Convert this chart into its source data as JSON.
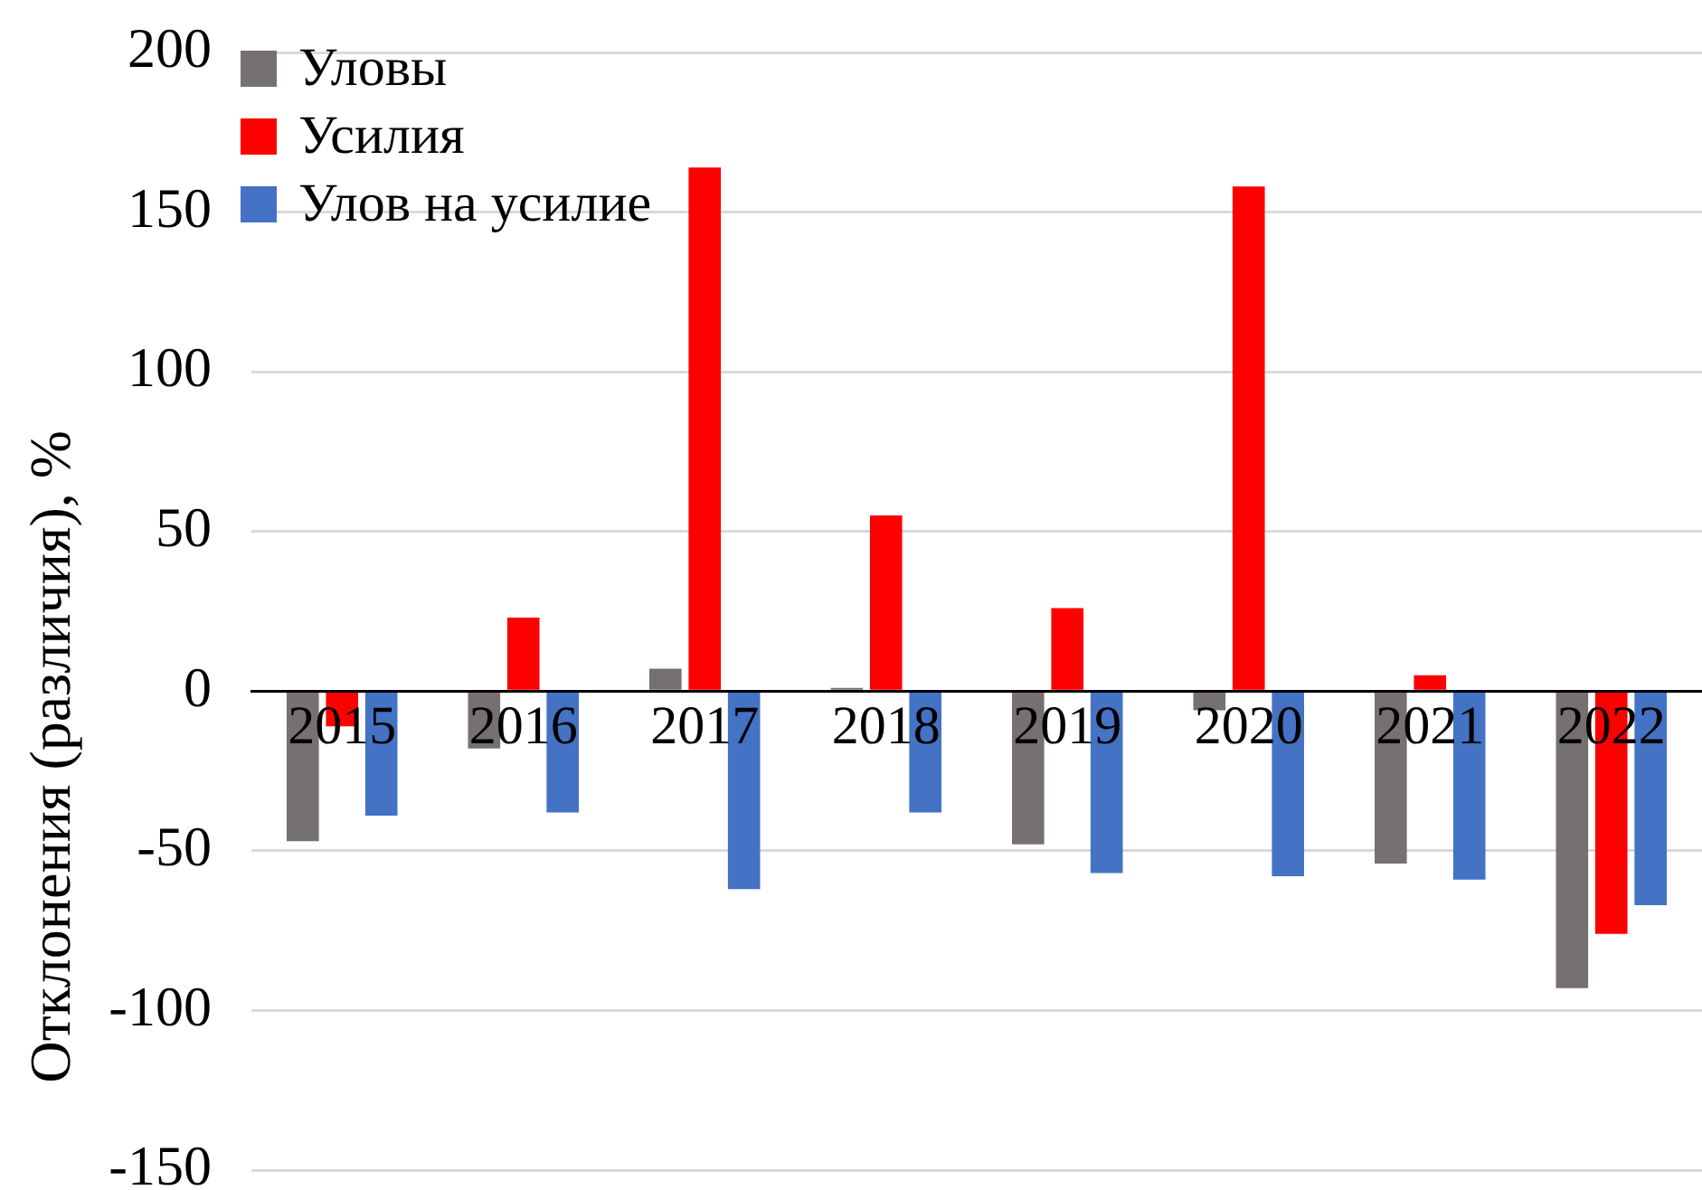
{
  "chart_data": {
    "type": "bar",
    "ylabel": "Отклонения (различия), %",
    "categories": [
      "2015",
      "2016",
      "2017",
      "2018",
      "2019",
      "2020",
      "2021",
      "2022"
    ],
    "series": [
      {
        "name": "Уловы",
        "color": "#767171",
        "values": [
          -47,
          -18,
          7,
          1,
          -48,
          -6,
          -54,
          -93
        ]
      },
      {
        "name": "Усилия",
        "color": "#ff0000",
        "values": [
          -11,
          23,
          164,
          55,
          26,
          158,
          5,
          -76
        ]
      },
      {
        "name": "Улов на усилие",
        "color": "#4472c4",
        "values": [
          -39,
          -38,
          -62,
          -38,
          -57,
          -58,
          -59,
          -67
        ]
      }
    ],
    "ylim": [
      -150,
      200
    ],
    "yticks": [
      -150,
      -100,
      -50,
      0,
      50,
      100,
      150,
      200
    ],
    "grid": "y",
    "legend": "top left"
  }
}
